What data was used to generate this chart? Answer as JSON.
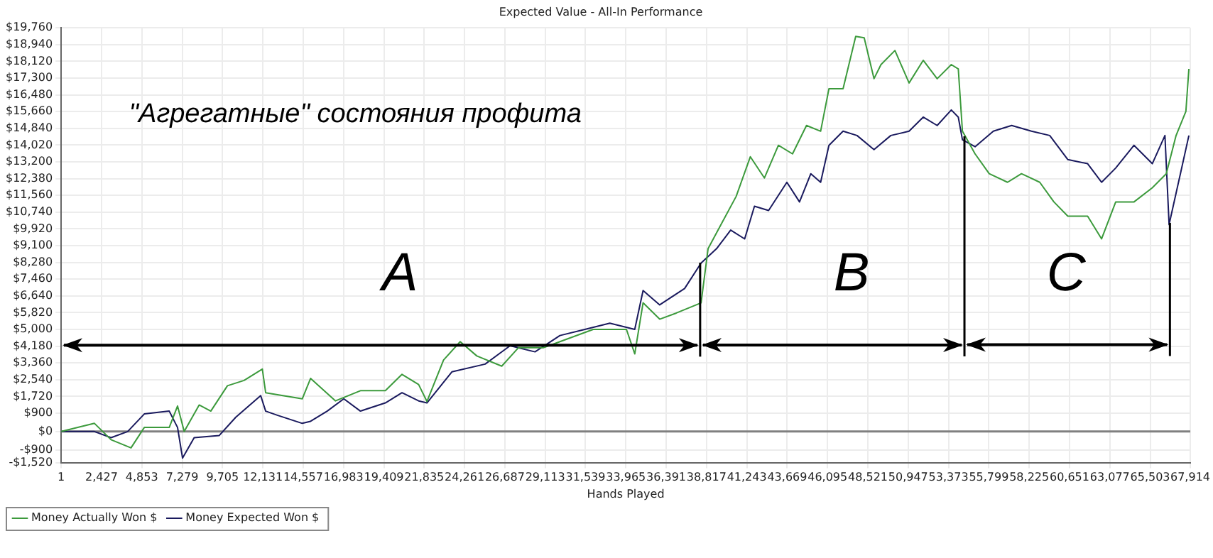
{
  "chart_data": {
    "type": "line",
    "title": "Expected Value - All-In Performance",
    "xlabel": "Hands Played",
    "annotations": [
      "\"Агрегатные\" состояния профита",
      "A",
      "B",
      "C"
    ],
    "xlim": [
      1,
      67914
    ],
    "xticks": [
      1,
      {
        "value": 2427,
        "label": "2,427"
      },
      {
        "value": 4853,
        "label": "4,853"
      },
      {
        "value": 7279,
        "label": "7,279"
      },
      {
        "value": 9705,
        "label": "9,705"
      },
      {
        "value": 12131,
        "label": "12,131"
      },
      {
        "value": 14557,
        "label": "14,557"
      },
      {
        "value": 16983,
        "label": "16,983"
      },
      {
        "value": 19409,
        "label": "19,409"
      },
      {
        "value": 21835,
        "label": "21,835"
      },
      {
        "value": 24261,
        "label": "24,261"
      },
      {
        "value": 26687,
        "label": "26,687"
      },
      {
        "value": 29113,
        "label": "29,113"
      },
      {
        "value": 31539,
        "label": "31,539"
      },
      {
        "value": 33965,
        "label": "33,965"
      },
      {
        "value": 36391,
        "label": "36,391"
      },
      {
        "value": 38817,
        "label": "38,817"
      },
      {
        "value": 41243,
        "label": "41,243"
      },
      {
        "value": 43669,
        "label": "43,669"
      },
      {
        "value": 46095,
        "label": "46,095"
      },
      {
        "value": 48521,
        "label": "48,521"
      },
      {
        "value": 50947,
        "label": "50,947"
      },
      {
        "value": 53373,
        "label": "53,373"
      },
      {
        "value": 55799,
        "label": "55,799"
      },
      {
        "value": 58225,
        "label": "58,225"
      },
      {
        "value": 60651,
        "label": "60,651"
      },
      {
        "value": 63077,
        "label": "63,077"
      },
      {
        "value": 65503,
        "label": "65,503"
      },
      {
        "value": 67914,
        "label": "67,914"
      }
    ],
    "ylim": [
      -1520,
      19760
    ],
    "yticks": [
      {
        "value": -1520,
        "label": "-$1,520"
      },
      {
        "value": -900,
        "label": "-$900"
      },
      {
        "value": 0,
        "label": "$0"
      },
      {
        "value": 900,
        "label": "$900"
      },
      {
        "value": 1720,
        "label": "$1,720"
      },
      {
        "value": 2540,
        "label": "$2,540"
      },
      {
        "value": 3360,
        "label": "$3,360"
      },
      {
        "value": 4180,
        "label": "$4,180"
      },
      {
        "value": 5000,
        "label": "$5,000"
      },
      {
        "value": 5820,
        "label": "$5,820"
      },
      {
        "value": 6640,
        "label": "$6,640"
      },
      {
        "value": 7460,
        "label": "$7,460"
      },
      {
        "value": 8280,
        "label": "$8,280"
      },
      {
        "value": 9100,
        "label": "$9,100"
      },
      {
        "value": 9920,
        "label": "$9,920"
      },
      {
        "value": 10740,
        "label": "$10,740"
      },
      {
        "value": 11560,
        "label": "$11,560"
      },
      {
        "value": 12380,
        "label": "$12,380"
      },
      {
        "value": 13200,
        "label": "$13,200"
      },
      {
        "value": 14020,
        "label": "$14,020"
      },
      {
        "value": 14840,
        "label": "$14,840"
      },
      {
        "value": 15660,
        "label": "$15,660"
      },
      {
        "value": 16480,
        "label": "$16,480"
      },
      {
        "value": 17300,
        "label": "$17,300"
      },
      {
        "value": 18120,
        "label": "$18,120"
      },
      {
        "value": 18940,
        "label": "$18,940"
      },
      {
        "value": 19760,
        "label": "$19,760"
      }
    ],
    "grid": true,
    "legend": "bottom left",
    "marker": "none",
    "line_style": "solid",
    "ref_lines": [
      {
        "axis": "y",
        "value": 0,
        "color": "#808080"
      }
    ],
    "series": [
      {
        "name": "Money Actually Won $",
        "color": "#3c9a3c",
        "x": [
          1,
          2000,
          3000,
          4200,
          5000,
          6500,
          7000,
          7400,
          8300,
          9000,
          10000,
          11000,
          12100,
          12300,
          14500,
          15000,
          16500,
          18000,
          19500,
          20500,
          21500,
          22000,
          23000,
          24000,
          25000,
          26500,
          27500,
          29000,
          30000,
          32000,
          34000,
          34500,
          35000,
          36000,
          37000,
          38490,
          38910,
          40600,
          41450,
          42300,
          43140,
          43990,
          44830,
          45680,
          46180,
          47030,
          47790,
          48300,
          48890,
          49310,
          50150,
          51000,
          51850,
          52690,
          53540,
          53960,
          54210,
          54970,
          55820,
          56920,
          57760,
          58860,
          59710,
          60550,
          61740,
          62580,
          63430,
          64530,
          65630,
          66470,
          67060,
          67650,
          67830
        ],
        "values": [
          0,
          400,
          -400,
          -800,
          200,
          200,
          1250,
          0,
          1300,
          1000,
          2240,
          2500,
          3060,
          1900,
          1600,
          2600,
          1500,
          2000,
          2000,
          2800,
          2300,
          1470,
          3500,
          4400,
          3700,
          3200,
          4100,
          4100,
          4400,
          5000,
          5000,
          3800,
          6300,
          5500,
          5800,
          6300,
          8950,
          11510,
          13450,
          12410,
          14010,
          13590,
          14980,
          14700,
          16780,
          16780,
          19340,
          19270,
          17270,
          17960,
          18650,
          17060,
          18170,
          17270,
          17960,
          17750,
          14700,
          13590,
          12620,
          12200,
          12620,
          12200,
          11240,
          10540,
          10540,
          9430,
          11240,
          11240,
          11930,
          12620,
          14490,
          15670,
          17750
        ]
      },
      {
        "name": "Money Expected Won $",
        "color": "#1a1a5e",
        "x": [
          1,
          2000,
          3000,
          4000,
          5000,
          6500,
          7000,
          7300,
          8000,
          9500,
          10500,
          12000,
          12300,
          13000,
          14500,
          15000,
          16000,
          17000,
          18000,
          19500,
          20500,
          21500,
          22000,
          23500,
          25500,
          27000,
          28500,
          30000,
          31500,
          33000,
          34500,
          35000,
          36000,
          37500,
          38490,
          39420,
          40270,
          41110,
          41700,
          42550,
          43650,
          44410,
          45090,
          45680,
          46180,
          47030,
          47870,
          48890,
          49900,
          51000,
          51850,
          52690,
          53540,
          53960,
          54210,
          54970,
          56070,
          57170,
          58360,
          59460,
          60550,
          61740,
          62580,
          63430,
          64530,
          65630,
          66390,
          66640,
          67320,
          67830
        ],
        "values": [
          0,
          0,
          -300,
          0,
          860,
          1000,
          200,
          -1300,
          -300,
          -200,
          700,
          1760,
          1000,
          800,
          400,
          500,
          1000,
          1600,
          1000,
          1400,
          1900,
          1500,
          1400,
          2920,
          3300,
          4200,
          3900,
          4700,
          5000,
          5300,
          5000,
          6900,
          6200,
          7000,
          8250,
          8950,
          9860,
          9430,
          11030,
          10820,
          12200,
          11240,
          12620,
          12200,
          14010,
          14700,
          14490,
          13800,
          14490,
          14700,
          15390,
          14980,
          15740,
          15390,
          14280,
          13940,
          14700,
          14980,
          14700,
          14490,
          13310,
          13110,
          12200,
          12900,
          14010,
          13110,
          14490,
          10130,
          12620,
          14490
        ]
      }
    ]
  }
}
